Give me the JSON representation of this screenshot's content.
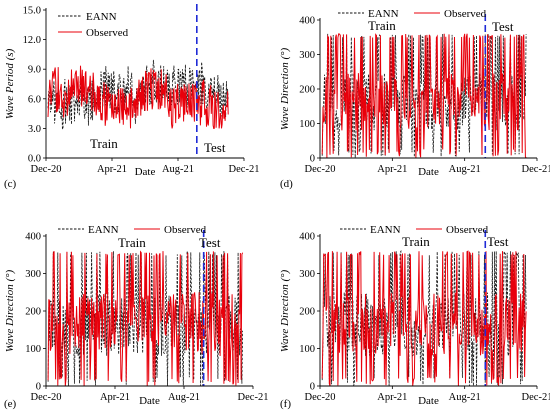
{
  "colors": {
    "eann": "#111111",
    "observed": "#e8000b",
    "split": "#1f2bd6",
    "axis": "#000000"
  },
  "chart_data": [
    {
      "panel": "(c)",
      "type": "line",
      "xlabel": "Date",
      "ylabel": "Wave Period (s)",
      "ylim": [
        0,
        15
      ],
      "yticks": [
        "0.0",
        "3.0",
        "6.0",
        "9.0",
        "12.0",
        "15.0"
      ],
      "xticks": [
        "Dec-20",
        "Apr-21",
        "Aug-21",
        "Dec-21"
      ],
      "xrange": [
        "2020-12-01",
        "2021-12-01"
      ],
      "split_date": "2021-09-05",
      "region_labels": [
        "Train",
        "Test"
      ],
      "legend_position": "top-left",
      "series": [
        {
          "name": "EANN",
          "style": "dashed",
          "values_range": [
            2.5,
            10.2
          ]
        },
        {
          "name": "Observed",
          "style": "solid",
          "values_range": [
            3.0,
            10.8
          ]
        }
      ]
    },
    {
      "panel": "(d)",
      "type": "line",
      "xlabel": "Date",
      "ylabel": "Wave Direction (°)",
      "ylim": [
        0,
        400
      ],
      "yticks": [
        "0",
        "100",
        "200",
        "300",
        "400"
      ],
      "xticks": [
        "Dec-20",
        "Apr-21",
        "Aug-21",
        "Dec-21"
      ],
      "xrange": [
        "2020-12-01",
        "2021-12-01"
      ],
      "split_date": "2021-09-05",
      "region_labels": [
        "Train",
        "Test"
      ],
      "legend_position": "top",
      "series": [
        {
          "name": "EANN",
          "style": "dashed",
          "values_range": [
            0,
            360
          ]
        },
        {
          "name": "Observed",
          "style": "solid",
          "values_range": [
            0,
            360
          ]
        }
      ]
    },
    {
      "panel": "(e)",
      "type": "line",
      "xlabel": "Date",
      "ylabel": "Wave Direction (°)",
      "ylim": [
        0,
        400
      ],
      "yticks": [
        "0",
        "100",
        "200",
        "300",
        "400"
      ],
      "xticks": [
        "Dec-20",
        "Apr-21",
        "Aug-21",
        "Dec-21"
      ],
      "xrange": [
        "2020-12-01",
        "2021-12-01"
      ],
      "split_date": "2021-09-05",
      "region_labels": [
        "Train",
        "Test"
      ],
      "legend_position": "top",
      "series": [
        {
          "name": "EANN",
          "style": "dashed",
          "values_range": [
            0,
            360
          ]
        },
        {
          "name": "Observed",
          "style": "solid",
          "values_range": [
            0,
            360
          ]
        }
      ]
    },
    {
      "panel": "(f)",
      "type": "line",
      "xlabel": "Date",
      "ylabel": "Wave Direction (°)",
      "ylim": [
        0,
        400
      ],
      "yticks": [
        "0",
        "100",
        "200",
        "300",
        "400"
      ],
      "xticks": [
        "Dec-20",
        "Apr-21",
        "Aug-21",
        "Dec-21"
      ],
      "xrange": [
        "2020-12-01",
        "2021-12-01"
      ],
      "split_date": "2021-09-05",
      "region_labels": [
        "Train",
        "Test"
      ],
      "legend_position": "top",
      "series": [
        {
          "name": "EANN",
          "style": "dashed",
          "values_range": [
            0,
            360
          ]
        },
        {
          "name": "Observed",
          "style": "solid",
          "values_range": [
            0,
            360
          ]
        }
      ]
    }
  ]
}
